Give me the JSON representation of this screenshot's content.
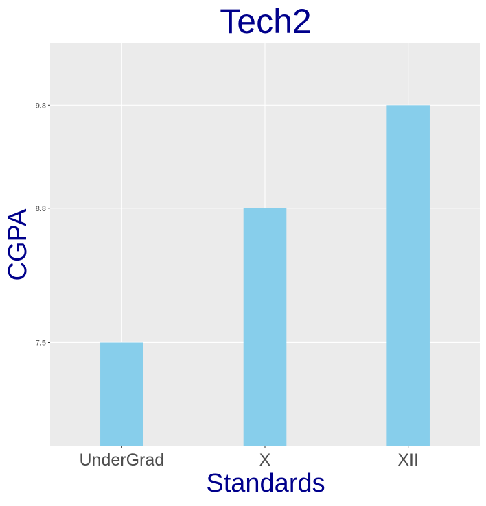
{
  "chart_data": {
    "type": "bar",
    "title": "Tech2",
    "xlabel": "Standards",
    "ylabel": "CGPA",
    "categories": [
      "UnderGrad",
      "X",
      "XII"
    ],
    "values": [
      7.5,
      8.8,
      9.8
    ],
    "yticks": [
      7.5,
      8.8,
      9.8
    ],
    "ytick_labels": [
      "7.5",
      "8.8",
      "9.8"
    ],
    "ylim": [
      6.5,
      10.4
    ],
    "grid": true,
    "legend": "none",
    "colors": {
      "bar": "#87ceeb",
      "panel": "#ebebeb",
      "grid": "#ffffff",
      "title": "#00008b",
      "tick_text": "#4d4d4d"
    }
  }
}
